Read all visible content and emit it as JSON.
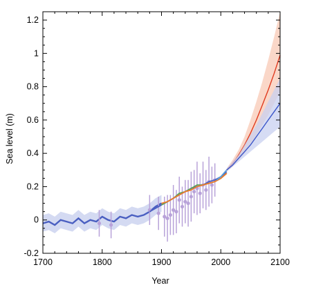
{
  "chart_data": {
    "type": "line",
    "xlabel": "Year",
    "ylabel": "Sea level (m)",
    "xlim": [
      1700,
      2100
    ],
    "ylim": [
      -0.2,
      1.25
    ],
    "x_ticks": [
      1700,
      1800,
      1900,
      2000,
      2100
    ],
    "x_tick_labels": [
      "1700",
      "1800",
      "1900",
      "2000",
      "2100"
    ],
    "y_ticks": [
      -0.2,
      0,
      0.2,
      0.4,
      0.6,
      0.8,
      1.0,
      1.2
    ],
    "y_tick_labels": [
      "-0.2",
      "0",
      "0.2",
      "0.4",
      "0.6",
      "0.8",
      "1",
      "1.2"
    ],
    "grid": false,
    "legend": "none",
    "series": [
      {
        "type": "line-with-band",
        "color": "#4a5fc1",
        "band_color": "#c5cdee",
        "x": [
          1700,
          1710,
          1720,
          1730,
          1740,
          1750,
          1760,
          1770,
          1780,
          1790,
          1800,
          1810,
          1820,
          1830,
          1840,
          1850,
          1860,
          1870,
          1880,
          1890,
          1900
        ],
        "y": [
          -0.02,
          -0.01,
          -0.03,
          0.0,
          -0.01,
          -0.02,
          0.01,
          -0.02,
          0.0,
          -0.01,
          0.02,
          0.0,
          -0.01,
          0.02,
          0.01,
          0.03,
          0.02,
          0.03,
          0.05,
          0.08,
          0.1
        ],
        "band": 0.05
      },
      {
        "type": "scatter-errorbar",
        "color": "#b8a2d9",
        "x": [
          1795,
          1815,
          1880,
          1895,
          1905,
          1910,
          1915,
          1920,
          1925,
          1930,
          1935,
          1940,
          1945,
          1950,
          1955,
          1960,
          1965,
          1970,
          1975,
          1980,
          1985,
          1990
        ],
        "y": [
          -0.02,
          -0.03,
          0.06,
          0.04,
          0.02,
          0.01,
          0.03,
          0.06,
          0.05,
          0.12,
          0.08,
          0.11,
          0.1,
          0.14,
          0.17,
          0.19,
          0.16,
          0.21,
          0.18,
          0.23,
          0.21,
          0.24
        ],
        "err": [
          0.08,
          0.08,
          0.09,
          0.1,
          0.12,
          0.14,
          0.12,
          0.15,
          0.13,
          0.14,
          0.12,
          0.13,
          0.14,
          0.15,
          0.13,
          0.16,
          0.12,
          0.14,
          0.12,
          0.15,
          0.11,
          0.1
        ]
      },
      {
        "type": "line",
        "color": "#4a5fc1",
        "x": [
          1880,
          1890,
          1900,
          1910,
          1920,
          1930,
          1940,
          1950,
          1960,
          1970,
          1980,
          1990,
          2000,
          2010
        ],
        "y": [
          0.05,
          0.07,
          0.09,
          0.11,
          0.13,
          0.15,
          0.17,
          0.19,
          0.2,
          0.21,
          0.23,
          0.24,
          0.26,
          0.29
        ]
      },
      {
        "type": "line",
        "color": "#5aa05a",
        "x": [
          1900,
          1910,
          1920,
          1930,
          1940,
          1950,
          1960,
          1970,
          1980,
          1990,
          2000,
          2010
        ],
        "y": [
          0.09,
          0.11,
          0.13,
          0.16,
          0.17,
          0.19,
          0.21,
          0.21,
          0.22,
          0.23,
          0.25,
          0.28
        ]
      },
      {
        "type": "line",
        "color": "#ef7a2a",
        "x": [
          1900,
          1910,
          1920,
          1930,
          1940,
          1950,
          1960,
          1970,
          1980,
          1990,
          2000,
          2010
        ],
        "y": [
          0.1,
          0.11,
          0.13,
          0.15,
          0.17,
          0.18,
          0.2,
          0.21,
          0.22,
          0.23,
          0.25,
          0.28
        ]
      },
      {
        "type": "line",
        "color": "#5aa0d8",
        "x": [
          1993,
          2000,
          2005,
          2010,
          2013
        ],
        "y": [
          0.24,
          0.26,
          0.28,
          0.3,
          0.31
        ]
      },
      {
        "type": "line-with-band",
        "color": "#e03a1e",
        "band_color": "#f8c9b6",
        "x": [
          2010,
          2020,
          2030,
          2040,
          2050,
          2060,
          2070,
          2080,
          2090,
          2100
        ],
        "y": [
          0.3,
          0.34,
          0.39,
          0.45,
          0.52,
          0.6,
          0.69,
          0.78,
          0.88,
          0.99
        ],
        "band_lo": [
          0.29,
          0.32,
          0.36,
          0.4,
          0.45,
          0.51,
          0.57,
          0.63,
          0.7,
          0.77
        ],
        "band_hi": [
          0.31,
          0.36,
          0.42,
          0.5,
          0.6,
          0.71,
          0.83,
          0.96,
          1.1,
          1.25
        ]
      },
      {
        "type": "line-with-band",
        "color": "#3a55c9",
        "band_color": "#c8d0f0",
        "x": [
          2010,
          2020,
          2030,
          2040,
          2050,
          2060,
          2070,
          2080,
          2090,
          2100
        ],
        "y": [
          0.3,
          0.33,
          0.37,
          0.41,
          0.45,
          0.5,
          0.55,
          0.6,
          0.65,
          0.7
        ],
        "band_lo": [
          0.29,
          0.32,
          0.35,
          0.38,
          0.41,
          0.44,
          0.47,
          0.5,
          0.53,
          0.56
        ],
        "band_hi": [
          0.31,
          0.35,
          0.39,
          0.45,
          0.51,
          0.57,
          0.64,
          0.71,
          0.78,
          0.85
        ]
      }
    ]
  }
}
